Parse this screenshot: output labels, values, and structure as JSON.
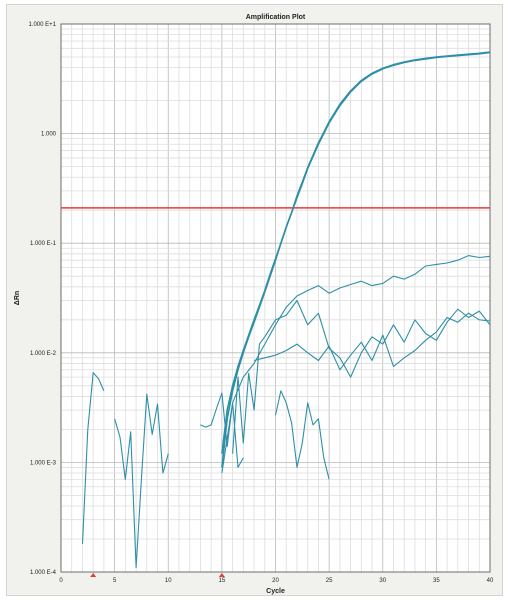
{
  "chart_data": {
    "type": "line",
    "title": "Amplification Plot",
    "xlabel": "Cycle",
    "ylabel": "ΔRn",
    "y_scale": "log",
    "xlim": [
      0,
      40
    ],
    "ylim": [
      0.0001,
      10
    ],
    "x_ticks": [
      0,
      5,
      10,
      15,
      20,
      25,
      30,
      35,
      40
    ],
    "y_ticks": [
      {
        "value": 10,
        "label": "1.000 E+1"
      },
      {
        "value": 1,
        "label": "1.000"
      },
      {
        "value": 0.1,
        "label": "1.000 E-1"
      },
      {
        "value": 0.01,
        "label": "1.000 E-2"
      },
      {
        "value": 0.001,
        "label": "1.000 E-3"
      },
      {
        "value": 0.0001,
        "label": "1.000 E-4"
      }
    ],
    "grid": true,
    "threshold": {
      "value": 0.21,
      "color": "#e83a3a"
    },
    "baseline_markers": [
      3,
      15
    ],
    "line_color": "#2f8fa6",
    "series": [
      {
        "x": [
          15,
          15.5,
          16,
          16.5,
          17,
          17.5,
          18,
          18.5,
          19,
          19.5,
          20,
          20.5,
          21,
          21.5,
          22,
          22.5,
          23,
          24,
          25,
          26,
          27,
          28,
          29,
          30,
          31,
          32,
          33,
          34,
          35,
          36,
          37,
          38,
          39,
          40
        ],
        "values": [
          0.0009,
          0.0025,
          0.0045,
          0.007,
          0.01,
          0.014,
          0.019,
          0.026,
          0.036,
          0.05,
          0.07,
          0.1,
          0.14,
          0.19,
          0.26,
          0.35,
          0.48,
          0.8,
          1.25,
          1.8,
          2.4,
          3.0,
          3.5,
          3.9,
          4.2,
          4.45,
          4.65,
          4.8,
          4.95,
          5.05,
          5.15,
          5.25,
          5.35,
          5.5
        ]
      },
      {
        "x": [
          15,
          15.5,
          16,
          16.5,
          17,
          17.5,
          18,
          18.5,
          19,
          19.5,
          20,
          20.5,
          21,
          21.5,
          22,
          22.5,
          23,
          24,
          25,
          26,
          27,
          28,
          29,
          30,
          31,
          32,
          33,
          34,
          35,
          36,
          37,
          38,
          39,
          40
        ],
        "values": [
          0.0012,
          0.003,
          0.005,
          0.0075,
          0.0105,
          0.0145,
          0.02,
          0.027,
          0.037,
          0.052,
          0.072,
          0.1,
          0.14,
          0.19,
          0.27,
          0.36,
          0.49,
          0.82,
          1.28,
          1.85,
          2.45,
          3.05,
          3.55,
          3.95,
          4.25,
          4.5,
          4.7,
          4.85,
          5.0,
          5.1,
          5.2,
          5.3,
          5.4,
          5.55
        ]
      },
      {
        "x": [
          15,
          16,
          17,
          18,
          19,
          20,
          21,
          22,
          23,
          24,
          25,
          26,
          27,
          28,
          29,
          30,
          31,
          32,
          33,
          34,
          35,
          36,
          37,
          38,
          39,
          40
        ],
        "values": [
          0.0008,
          0.0035,
          0.006,
          0.008,
          0.012,
          0.018,
          0.026,
          0.033,
          0.037,
          0.041,
          0.035,
          0.039,
          0.042,
          0.045,
          0.041,
          0.043,
          0.05,
          0.047,
          0.052,
          0.062,
          0.064,
          0.066,
          0.07,
          0.077,
          0.074,
          0.076
        ]
      },
      {
        "x": [
          16,
          16.5,
          17,
          17.5,
          18,
          18.5,
          19,
          20,
          21,
          22,
          23,
          24,
          25,
          26,
          27,
          28,
          29,
          30,
          31,
          32,
          33,
          34,
          35,
          36,
          37,
          38,
          39,
          40
        ],
        "values": [
          0.0012,
          0.006,
          0.0015,
          0.0065,
          0.003,
          0.012,
          0.014,
          0.02,
          0.022,
          0.03,
          0.018,
          0.023,
          0.011,
          0.009,
          0.006,
          0.01,
          0.014,
          0.012,
          0.018,
          0.0125,
          0.02,
          0.015,
          0.013,
          0.019,
          0.025,
          0.021,
          0.024,
          0.018
        ]
      },
      {
        "x": [
          18,
          19,
          20,
          21,
          22,
          23,
          24,
          25,
          26,
          27,
          28,
          29,
          30,
          31,
          32,
          33,
          34,
          35,
          36,
          37,
          38,
          39,
          40
        ],
        "values": [
          0.0085,
          0.009,
          0.0095,
          0.0105,
          0.012,
          0.01,
          0.0085,
          0.0115,
          0.007,
          0.0095,
          0.0125,
          0.0085,
          0.0145,
          0.0075,
          0.009,
          0.0105,
          0.013,
          0.0155,
          0.021,
          0.019,
          0.023,
          0.02,
          0.0195
        ]
      },
      {
        "x": [
          2,
          2.5,
          3,
          3.5,
          4
        ],
        "values": [
          0.00018,
          0.002,
          0.0066,
          0.0058,
          0.0045
        ]
      },
      {
        "x": [
          5,
          5.5,
          6,
          6.5,
          7,
          7.5,
          8,
          8.5,
          9,
          9.5,
          10
        ],
        "values": [
          0.0025,
          0.0017,
          0.0007,
          0.0019,
          0.00011,
          0.0007,
          0.0042,
          0.0018,
          0.0034,
          0.0008,
          0.0012
        ]
      },
      {
        "x": [
          13,
          13.5,
          14,
          14.5,
          15,
          15.5,
          16,
          16.5,
          17
        ],
        "values": [
          0.0022,
          0.0021,
          0.0022,
          0.0031,
          0.0043,
          0.0014,
          0.0035,
          0.0009,
          0.0011
        ]
      },
      {
        "x": [
          20,
          20.5,
          21,
          21.5,
          22,
          22.5,
          23,
          23.5,
          24,
          24.5,
          25
        ],
        "values": [
          0.0027,
          0.0045,
          0.0035,
          0.0023,
          0.0009,
          0.0015,
          0.0035,
          0.0022,
          0.0025,
          0.0011,
          0.0007
        ]
      }
    ]
  }
}
